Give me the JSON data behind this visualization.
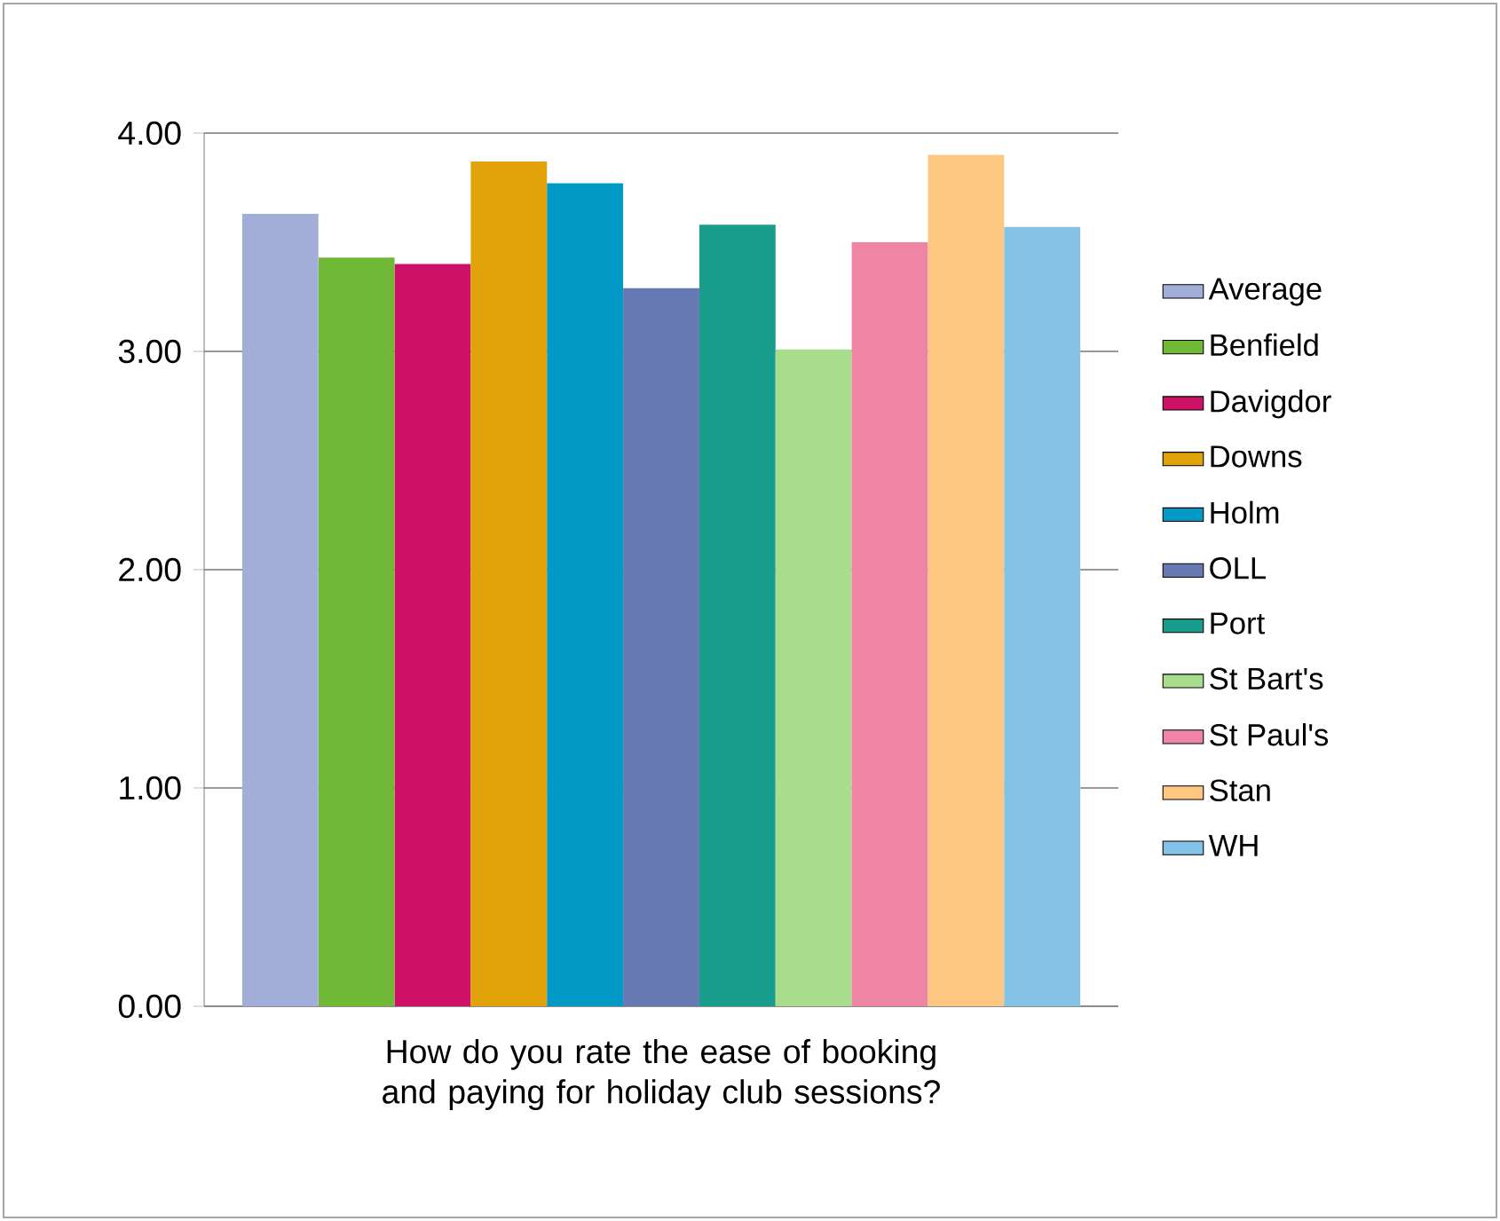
{
  "chart_data": {
    "type": "bar",
    "xlabel": "How do you rate the ease of booking and paying for holiday club sessions?",
    "categories": [
      null
    ],
    "series": [
      {
        "name": "Average",
        "color": "#a2aed8",
        "values": [
          3.63
        ]
      },
      {
        "name": "Benfield",
        "color": "#70b936",
        "values": [
          3.43
        ]
      },
      {
        "name": "Davigdor",
        "color": "#cc1166",
        "values": [
          3.4
        ]
      },
      {
        "name": "Downs",
        "color": "#e1a20a",
        "values": [
          3.87
        ]
      },
      {
        "name": "Holm",
        "color": "#0399c6",
        "values": [
          3.77
        ]
      },
      {
        "name": "OLL",
        "color": "#6679b2",
        "values": [
          3.29
        ]
      },
      {
        "name": "Port",
        "color": "#189d8c",
        "values": [
          3.58
        ]
      },
      {
        "name": "St Bart's",
        "color": "#a9dd8e",
        "values": [
          3.01
        ]
      },
      {
        "name": "St Paul's",
        "color": "#ee84a6",
        "values": [
          3.5
        ]
      },
      {
        "name": "Stan",
        "color": "#fdc782",
        "values": [
          3.9
        ]
      },
      {
        "name": "WH",
        "color": "#84c3e5",
        "values": [
          3.57
        ]
      }
    ],
    "ylim": [
      0,
      4
    ],
    "yticks": [
      {
        "value": 0,
        "label": "0.00"
      },
      {
        "value": 1,
        "label": "1.00"
      },
      {
        "value": 2,
        "label": "2.00"
      },
      {
        "value": 3,
        "label": "3.00"
      },
      {
        "value": 4,
        "label": "4.00"
      }
    ],
    "grid": "y",
    "legend": "right"
  }
}
